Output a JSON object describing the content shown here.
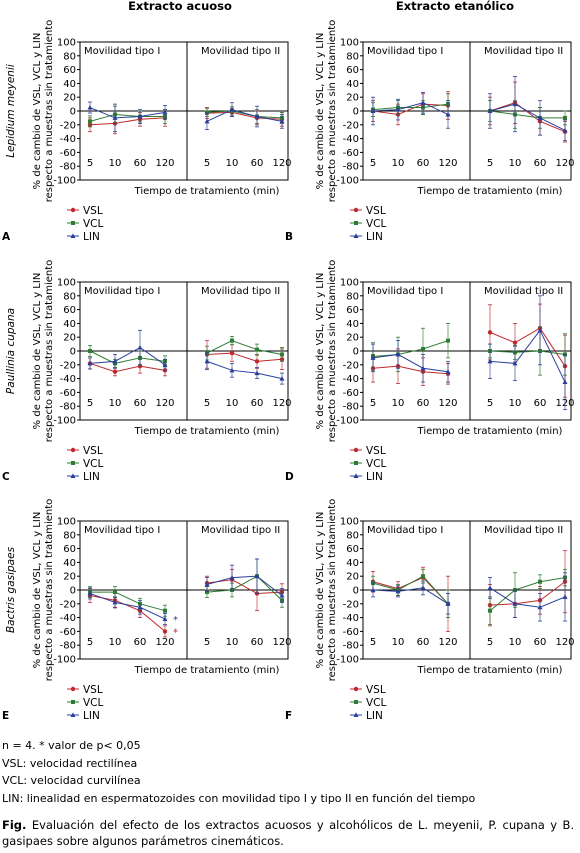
{
  "column_titles": [
    "Extracto acuoso",
    "Extracto etanólico"
  ],
  "row_labels": [
    "Lepidium meyenii",
    "Paullinia cupana",
    "Bactris gasipaes"
  ],
  "chart_data": [
    {
      "type": "line",
      "panel": "A",
      "ylabel": "% de cambio de VSL, VCL y LIN\nrespecto a muestras sin tratamiento",
      "xlabel": "Tiempo de tratamiento (min)",
      "ylim": [
        -100,
        100
      ],
      "yticks": [
        100,
        80,
        60,
        40,
        20,
        0,
        -20,
        -40,
        -60,
        -80,
        -100
      ],
      "groups": [
        "Movilidad tipo I",
        "Movilidad tipo II"
      ],
      "categories": [
        "5",
        "10",
        "60",
        "120"
      ],
      "series": [
        {
          "name": "VSL",
          "color": "#c0282d",
          "values": [
            [
              -20,
              -18,
              -12,
              -10
            ],
            [
              -3,
              -2,
              -10,
              -12
            ]
          ],
          "err": [
            [
              10,
              15,
              10,
              12
            ],
            [
              8,
              6,
              10,
              10
            ]
          ]
        },
        {
          "name": "VCL",
          "color": "#2e7d32",
          "values": [
            [
              -15,
              -5,
              -8,
              -8
            ],
            [
              -2,
              0,
              -8,
              -10
            ]
          ],
          "err": [
            [
              8,
              12,
              8,
              10
            ],
            [
              6,
              6,
              10,
              8
            ]
          ]
        },
        {
          "name": "LIN",
          "color": "#2a3f9c",
          "values": [
            [
              5,
              -10,
              -8,
              -2
            ],
            [
              -15,
              2,
              -8,
              -15
            ]
          ],
          "err": [
            [
              8,
              20,
              10,
              10
            ],
            [
              12,
              10,
              15,
              10
            ]
          ]
        }
      ]
    },
    {
      "type": "line",
      "panel": "B",
      "ylabel": "% de cambio de VSL, VCL y LIN\nrespecto a muestras sin tratamiento",
      "xlabel": "Tiempo de tratamiento (min)",
      "ylim": [
        -100,
        100
      ],
      "yticks": [
        100,
        80,
        60,
        40,
        20,
        0,
        -20,
        -40,
        -60,
        -80,
        -100
      ],
      "groups": [
        "Movilidad tipo I",
        "Movilidad tipo II"
      ],
      "categories": [
        "5",
        "10",
        "60",
        "120"
      ],
      "series": [
        {
          "name": "VSL",
          "color": "#c0282d",
          "values": [
            [
              0,
              -5,
              10,
              8
            ],
            [
              0,
              12,
              -15,
              -30
            ]
          ],
          "err": [
            [
              15,
              15,
              15,
              20
            ],
            [
              20,
              30,
              20,
              15
            ]
          ]
        },
        {
          "name": "VCL",
          "color": "#2e7d32",
          "values": [
            [
              2,
              5,
              5,
              10
            ],
            [
              0,
              -5,
              -10,
              -10
            ]
          ],
          "err": [
            [
              10,
              10,
              10,
              15
            ],
            [
              15,
              20,
              15,
              10
            ]
          ]
        },
        {
          "name": "LIN",
          "color": "#2a3f9c",
          "values": [
            [
              0,
              2,
              12,
              -5
            ],
            [
              0,
              10,
              -10,
              -28
            ]
          ],
          "err": [
            [
              20,
              15,
              15,
              20
            ],
            [
              25,
              40,
              25,
              15
            ]
          ]
        }
      ]
    },
    {
      "type": "line",
      "panel": "C",
      "ylabel": "% de cambio de VSL, VCL y LIN\nrespecto a muestras sin tratamiento",
      "xlabel": "Tiempo de tratamiento (min)",
      "ylim": [
        -100,
        100
      ],
      "yticks": [
        100,
        80,
        60,
        40,
        20,
        0,
        -20,
        -40,
        -60,
        -80,
        -100
      ],
      "groups": [
        "Movilidad tipo I",
        "Movilidad tipo II"
      ],
      "categories": [
        "5",
        "10",
        "60",
        "120"
      ],
      "series": [
        {
          "name": "VSL",
          "color": "#c0282d",
          "values": [
            [
              -18,
              -30,
              -22,
              -28
            ],
            [
              -5,
              -3,
              -15,
              -12
            ]
          ],
          "err": [
            [
              8,
              6,
              10,
              8
            ],
            [
              20,
              12,
              10,
              15
            ]
          ]
        },
        {
          "name": "VCL",
          "color": "#2e7d32",
          "values": [
            [
              0,
              -18,
              -10,
              -15
            ],
            [
              -3,
              15,
              2,
              -5
            ]
          ],
          "err": [
            [
              8,
              6,
              10,
              8
            ],
            [
              10,
              6,
              8,
              10
            ]
          ]
        },
        {
          "name": "LIN",
          "color": "#2a3f9c",
          "values": [
            [
              -18,
              -15,
              5,
              -20
            ],
            [
              -15,
              -28,
              -32,
              -40
            ]
          ],
          "err": [
            [
              8,
              10,
              25,
              8
            ],
            [
              12,
              10,
              8,
              8
            ]
          ]
        }
      ]
    },
    {
      "type": "line",
      "panel": "D",
      "ylabel": "% de cambio de VSL, VCL y LIN\nrespecto a muestras sin tratamiento",
      "xlabel": "Tiempo de tratamiento (min)",
      "ylim": [
        -100,
        100
      ],
      "yticks": [
        100,
        80,
        60,
        40,
        20,
        0,
        -20,
        -40,
        -60,
        -80,
        -100
      ],
      "groups": [
        "Movilidad tipo I",
        "Movilidad tipo II"
      ],
      "categories": [
        "5",
        "10",
        "60",
        "120"
      ],
      "series": [
        {
          "name": "VSL",
          "color": "#c0282d",
          "values": [
            [
              -25,
              -22,
              -30,
              -33
            ],
            [
              27,
              12,
              33,
              -22
            ]
          ],
          "err": [
            [
              20,
              25,
              20,
              15
            ],
            [
              40,
              28,
              35,
              45
            ]
          ]
        },
        {
          "name": "VCL",
          "color": "#2e7d32",
          "values": [
            [
              -8,
              -5,
              3,
              15
            ],
            [
              0,
              -2,
              0,
              -5
            ]
          ],
          "err": [
            [
              20,
              25,
              30,
              25
            ],
            [
              10,
              10,
              35,
              30
            ]
          ]
        },
        {
          "name": "LIN",
          "color": "#2a3f9c",
          "values": [
            [
              -10,
              -5,
              -25,
              -30
            ],
            [
              -15,
              -18,
              30,
              -45
            ]
          ],
          "err": [
            [
              20,
              20,
              20,
              15
            ],
            [
              25,
              25,
              50,
              40
            ]
          ]
        }
      ]
    },
    {
      "type": "line",
      "panel": "E",
      "ylabel": "% de cambio de VSL, VCL y LIN\nrespecto a muestras sin tratamiento",
      "xlabel": "Tiempo de tratamiento (min)",
      "ylim": [
        -100,
        100
      ],
      "yticks": [
        100,
        80,
        60,
        40,
        20,
        0,
        -20,
        -40,
        -60,
        -80,
        -100
      ],
      "groups": [
        "Movilidad tipo I",
        "Movilidad tipo II"
      ],
      "categories": [
        "5",
        "10",
        "60",
        "120"
      ],
      "series": [
        {
          "name": "VSL",
          "color": "#c0282d",
          "values": [
            [
              -8,
              -15,
              -30,
              -60
            ],
            [
              10,
              15,
              -5,
              -3
            ]
          ],
          "err": [
            [
              10,
              10,
              10,
              8
            ],
            [
              10,
              15,
              25,
              12
            ]
          ]
        },
        {
          "name": "VCL",
          "color": "#2e7d32",
          "values": [
            [
              -3,
              -3,
              -20,
              -30
            ],
            [
              -3,
              0,
              20,
              -15
            ]
          ],
          "err": [
            [
              8,
              8,
              8,
              8
            ],
            [
              8,
              10,
              25,
              10
            ]
          ]
        },
        {
          "name": "LIN",
          "color": "#2a3f9c",
          "values": [
            [
              -5,
              -18,
              -25,
              -42
            ],
            [
              8,
              18,
              20,
              -8
            ]
          ],
          "err": [
            [
              8,
              8,
              10,
              8
            ],
            [
              10,
              18,
              25,
              10
            ]
          ]
        }
      ],
      "stars": [
        {
          "series": "VSL",
          "label": "*"
        },
        {
          "series": "LIN",
          "label": "*"
        }
      ]
    },
    {
      "type": "line",
      "panel": "F",
      "ylabel": "% de cambio de VSL, VCL y LIN\nrespecto a muestras sin tratamiento",
      "xlabel": "Tiempo de tratamiento (min)",
      "ylim": [
        -100,
        100
      ],
      "yticks": [
        100,
        80,
        60,
        40,
        20,
        0,
        -20,
        -40,
        -60,
        -80,
        -100
      ],
      "groups": [
        "Movilidad tipo I",
        "Movilidad tipo II"
      ],
      "categories": [
        "5",
        "10",
        "60",
        "120"
      ],
      "series": [
        {
          "name": "VSL",
          "color": "#c0282d",
          "values": [
            [
              12,
              2,
              18,
              -20
            ],
            [
              -22,
              -20,
              -15,
              12
            ]
          ],
          "err": [
            [
              15,
              10,
              15,
              40
            ],
            [
              30,
              20,
              20,
              45
            ]
          ]
        },
        {
          "name": "VCL",
          "color": "#2e7d32",
          "values": [
            [
              10,
              0,
              20,
              -20
            ],
            [
              -30,
              0,
              12,
              18
            ]
          ],
          "err": [
            [
              10,
              8,
              10,
              20
            ],
            [
              20,
              25,
              10,
              12
            ]
          ]
        },
        {
          "name": "LIN",
          "color": "#2a3f9c",
          "values": [
            [
              0,
              -2,
              3,
              -20
            ],
            [
              3,
              -20,
              -25,
              -10
            ]
          ],
          "err": [
            [
              10,
              8,
              10,
              15
            ],
            [
              15,
              20,
              20,
              35
            ]
          ]
        }
      ]
    }
  ],
  "notes": [
    "n = 4. * valor de p< 0,05",
    "VSL: velocidad rectilínea",
    "VCL: velocidad curvilínea",
    "LIN: linealidad en espermatozoides con movilidad tipo I y tipo II en función del tiempo"
  ],
  "caption": {
    "label": "Fig.",
    "text": "Evaluación del efecto de los extractos acuosos y alcohólicos de L. meyenii, P. cupana y B. gasipaes sobre algunos parámetros cinemáticos."
  }
}
